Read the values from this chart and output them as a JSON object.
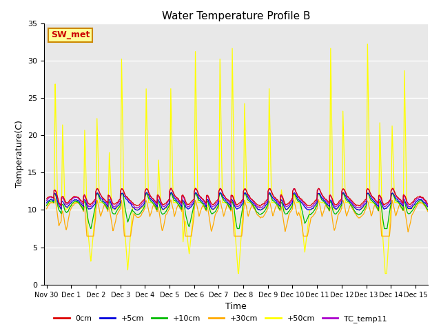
{
  "title": "Water Temperature Profile B",
  "xlabel": "Time",
  "ylabel": "Temperature(C)",
  "ylim": [
    0,
    35
  ],
  "yticks": [
    0,
    5,
    10,
    15,
    20,
    25,
    30,
    35
  ],
  "plot_bg_color": "#e8e8e8",
  "series_colors": {
    "0cm": "#dd0000",
    "+5cm": "#0000dd",
    "+10cm": "#00bb00",
    "+30cm": "#ffaa00",
    "+50cm": "#ffff00",
    "TC_temp11": "#aa00cc"
  },
  "annotation_text": "SW_met",
  "annotation_color": "#cc0000",
  "annotation_bg": "#ffff99",
  "annotation_border": "#cc8800",
  "num_points": 4000,
  "end_day": 15.5,
  "spike_times_50": [
    0.35,
    0.65,
    1.55,
    2.05,
    2.55,
    3.05,
    4.05,
    4.55,
    5.05,
    5.55,
    6.05,
    6.55,
    7.05,
    7.55,
    8.05,
    9.05,
    9.55,
    10.05,
    11.05,
    11.55,
    12.05,
    13.05,
    13.55,
    14.05,
    14.55
  ],
  "spike_peaks_50": [
    27,
    22,
    21,
    22,
    18,
    30,
    26,
    17,
    26,
    6,
    31,
    11,
    30,
    32,
    24,
    26,
    13,
    12,
    11,
    32,
    23,
    32,
    22,
    21,
    29
  ],
  "dip_times_50": [
    1.8,
    3.3,
    5.8,
    7.8,
    10.5,
    13.8
  ],
  "dip_depths_50": [
    7,
    9,
    6,
    9,
    6,
    10
  ]
}
